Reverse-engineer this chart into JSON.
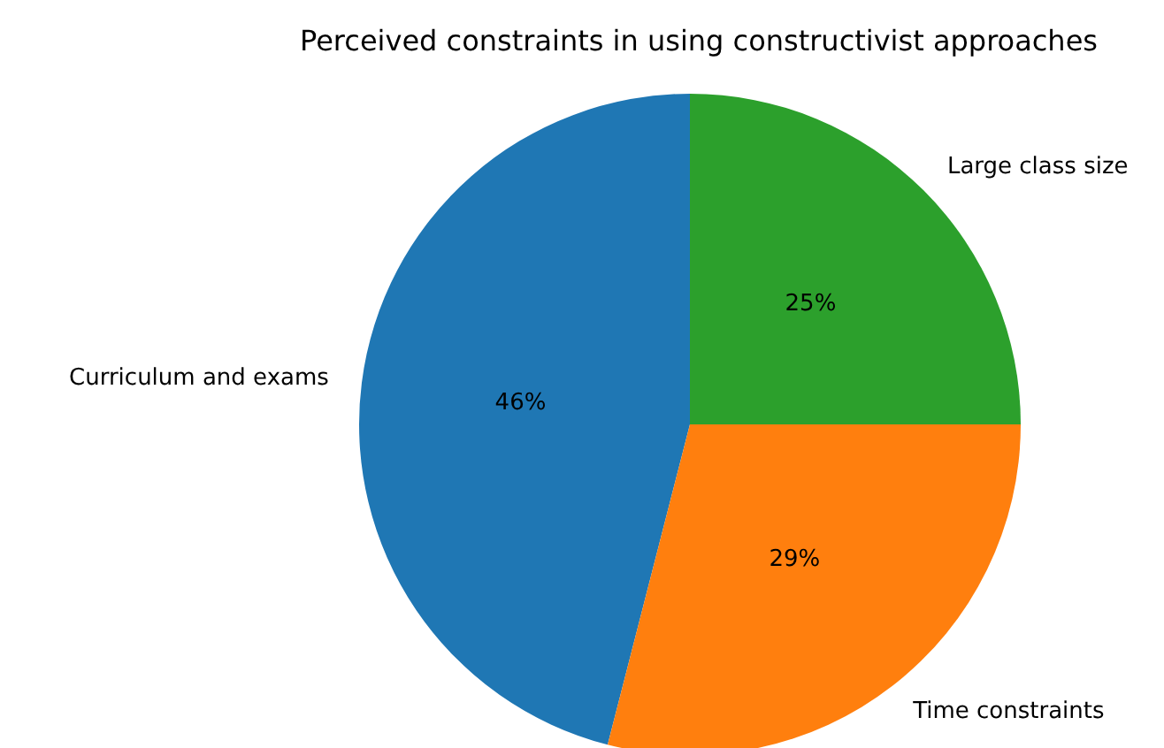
{
  "chart_data": {
    "type": "pie",
    "title": "Perceived constraints in using constructivist approaches",
    "categories": [
      "Curriculum and exams",
      "Time constraints",
      "Large class size"
    ],
    "values": [
      46,
      29,
      25
    ],
    "colors": [
      "#1f77b4",
      "#ff7f0e",
      "#2ca02c"
    ],
    "value_labels": [
      "46%",
      "29%",
      "25%"
    ],
    "legend": false
  }
}
